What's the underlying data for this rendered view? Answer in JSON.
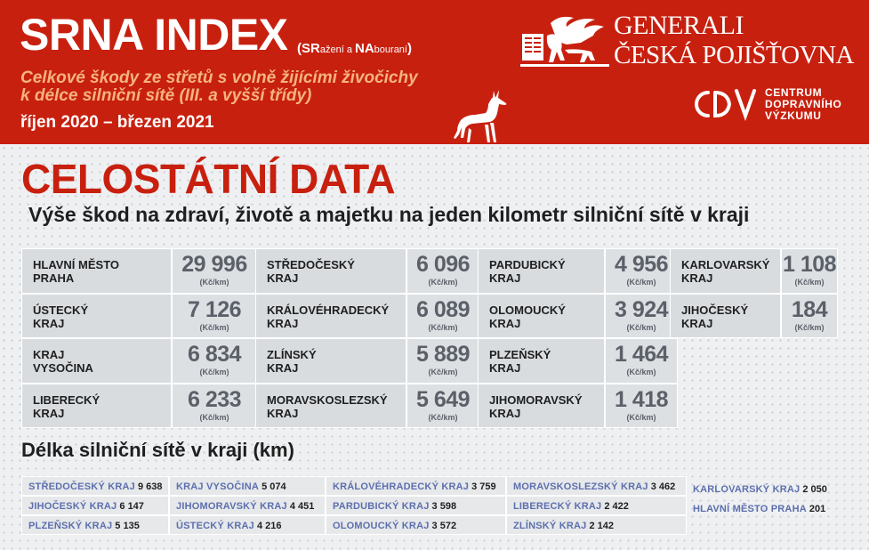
{
  "header": {
    "title": "SRNA INDEX",
    "note_open": "(",
    "note_sr": "SR",
    "note_sr_rest": "ažení",
    "note_a": " a ",
    "note_na": "NA",
    "note_na_rest": "bouraní",
    "note_close": ")",
    "subtitle_line1": "Celkové škody ze střetů s volně žijícími živočichy",
    "subtitle_line2": "k délce silniční sítě (III. a vyšší třídy)",
    "period": "říjen 2020 – březen 2021"
  },
  "logos": {
    "generali_line1": "GENERALI",
    "generali_line2": "ČESKÁ POJIŠŤOVNA",
    "cdv_mark": "CDV",
    "cdv_line1": "CENTRUM",
    "cdv_line2": "DOPRAVNÍHO",
    "cdv_line3": "VÝZKUMU"
  },
  "main": {
    "heading": "CELOSTÁTNÍ DATA",
    "subheading": "Výše škod na zdraví, životě a majetku na jeden kilometr silniční sítě v kraji",
    "length_heading": "Délka silniční sítě v kraji (km)"
  },
  "costs": {
    "unit": "(Kč/km)",
    "columns": [
      [
        {
          "region": "HLAVNÍ MĚSTO\nPRAHA",
          "value": "29 996"
        },
        {
          "region": "ÚSTECKÝ\nKRAJ",
          "value": "7 126"
        },
        {
          "region": "KRAJ\nVYSOČINA",
          "value": "6 834"
        },
        {
          "region": "LIBERECKÝ\nKRAJ",
          "value": "6 233"
        }
      ],
      [
        {
          "region": "STŘEDOČESKÝ\nKRAJ",
          "value": "6 096"
        },
        {
          "region": "KRÁLOVÉHRADECKÝ\nKRAJ",
          "value": "6 089"
        },
        {
          "region": "ZLÍNSKÝ\nKRAJ",
          "value": "5 889"
        },
        {
          "region": "MORAVSKOSLEZSKÝ\nKRAJ",
          "value": "5 649"
        }
      ],
      [
        {
          "region": "PARDUBICKÝ\nKRAJ",
          "value": "4 956"
        },
        {
          "region": "OLOMOUCKÝ\nKRAJ",
          "value": "3 924"
        },
        {
          "region": "PLZEŇSKÝ\nKRAJ",
          "value": "1 464"
        },
        {
          "region": "JIHOMORAVSKÝ\nKRAJ",
          "value": "1 418"
        }
      ],
      [
        {
          "region": "KARLOVARSKÝ\nKRAJ",
          "value": "1 108"
        },
        {
          "region": "JIHOČESKÝ\nKRAJ",
          "value": "184"
        }
      ]
    ]
  },
  "lengths": {
    "columns": [
      [
        {
          "region": "STŘEDOČESKÝ KRAJ",
          "value": "9 638"
        },
        {
          "region": "JIHOČESKÝ KRAJ",
          "value": "6 147"
        },
        {
          "region": "PLZEŇSKÝ KRAJ",
          "value": "5 135"
        }
      ],
      [
        {
          "region": "KRAJ VYSOČINA",
          "value": "5 074"
        },
        {
          "region": "JIHOMORAVSKÝ KRAJ",
          "value": "4 451"
        },
        {
          "region": "ÚSTECKÝ KRAJ",
          "value": "4 216"
        }
      ],
      [
        {
          "region": "KRÁLOVÉHRADECKÝ KRAJ",
          "value": "3 759"
        },
        {
          "region": "PARDUBICKÝ KRAJ",
          "value": "3 598"
        },
        {
          "region": "OLOMOUCKÝ KRAJ",
          "value": "3 572"
        }
      ],
      [
        {
          "region": "MORAVSKOSLEZSKÝ KRAJ",
          "value": "3 462"
        },
        {
          "region": "LIBERECKÝ KRAJ",
          "value": "2 422"
        },
        {
          "region": "ZLÍNSKÝ KRAJ",
          "value": "2 142"
        }
      ],
      [
        {
          "region": "KARLOVARSKÝ KRAJ",
          "value": "2 050"
        },
        {
          "region": "HLAVNÍ MĚSTO PRAHA",
          "value": "201"
        }
      ]
    ]
  },
  "colors": {
    "brand_red": "#c8200f",
    "subtitle_orange": "#f4b47e",
    "value_gray": "#5b6069",
    "length_name_blue": "#5d6fae"
  },
  "icons": [
    "deer-icon",
    "generali-lion-logo",
    "cdv-logo"
  ]
}
